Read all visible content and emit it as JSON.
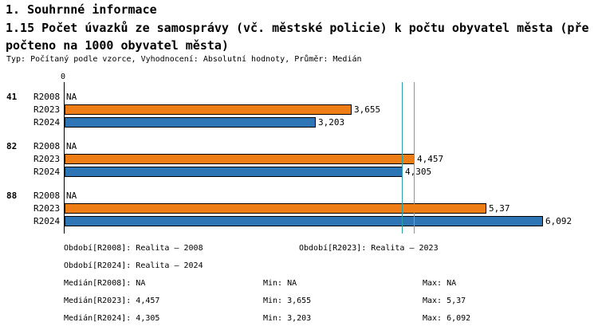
{
  "header": {
    "section_title": "1. Souhrnné informace",
    "indicator_title": "1.15 Počet úvazků ze samosprávy (vč. městské policie) k počtu obyvatel města (pře\npočteno na 1000 obyvatel města)",
    "meta": "Typ: Počítaný podle vzorce, Vyhodnocení: Absolutní hodnoty, Průměr: Medián"
  },
  "chart_data": {
    "type": "bar",
    "orientation": "horizontal",
    "title": "1.15 Počet úvazků ze samosprávy (vč. městské policie) k počtu obyvatel města (přepočteno na 1000 obyvatel města)",
    "x_axis": {
      "origin_label": "0",
      "min": 0,
      "max": 6.6,
      "grid": false
    },
    "series_colors": {
      "R2023": "#EE7D16",
      "R2024": "#2E75B6"
    },
    "groups": [
      {
        "label": "41",
        "bars": [
          {
            "series": "R2008",
            "value": null,
            "display": "NA"
          },
          {
            "series": "R2023",
            "value": 3.655,
            "display": "3,655"
          },
          {
            "series": "R2024",
            "value": 3.203,
            "display": "3,203"
          }
        ]
      },
      {
        "label": "82",
        "bars": [
          {
            "series": "R2008",
            "value": null,
            "display": "NA"
          },
          {
            "series": "R2023",
            "value": 4.457,
            "display": "4,457"
          },
          {
            "series": "R2024",
            "value": 4.305,
            "display": "4,305"
          }
        ]
      },
      {
        "label": "88",
        "bars": [
          {
            "series": "R2008",
            "value": null,
            "display": "NA"
          },
          {
            "series": "R2023",
            "value": 5.37,
            "display": "5,37"
          },
          {
            "series": "R2024",
            "value": 6.092,
            "display": "6,092"
          }
        ]
      }
    ],
    "median_lines": [
      {
        "series": "R2024",
        "value": 4.305,
        "color": "#2BA0A8"
      },
      {
        "series": "R2023",
        "value": 4.457,
        "color": "#F08000"
      }
    ]
  },
  "legend": {
    "periods": [
      {
        "text": "Období[R2008]: Realita – 2008"
      },
      {
        "text": "Období[R2023]: Realita – 2023"
      },
      {
        "text": "Období[R2024]: Realita – 2024"
      }
    ],
    "stats": [
      {
        "median": "Medián[R2008]: NA",
        "min": "Min: NA",
        "max": "Max: NA"
      },
      {
        "median": "Medián[R2023]: 4,457",
        "min": "Min: 3,655",
        "max": "Max: 5,37"
      },
      {
        "median": "Medián[R2024]: 4,305",
        "min": "Min: 3,203",
        "max": "Max: 6,092"
      }
    ]
  }
}
